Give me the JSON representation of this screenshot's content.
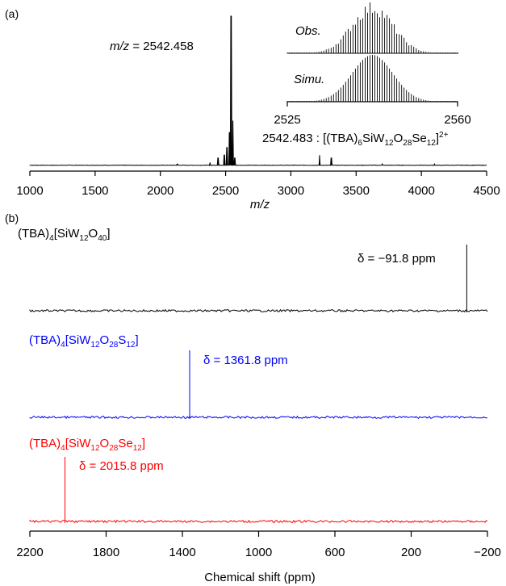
{
  "chart_data": [
    {
      "type": "line",
      "panel_label": "(a)",
      "xlabel": "m/z",
      "xlim": [
        1000,
        4500
      ],
      "x_ticks": [
        1000,
        1500,
        2000,
        2500,
        3000,
        3500,
        4000,
        4500
      ],
      "annotation": {
        "prefix": "m/z",
        "text": " = 2542.458"
      },
      "peaks": [
        {
          "x": 2130,
          "y": 0.01
        },
        {
          "x": 2380,
          "y": 0.02
        },
        {
          "x": 2442,
          "y": 0.05
        },
        {
          "x": 2490,
          "y": 0.07
        },
        {
          "x": 2510,
          "y": 0.12
        },
        {
          "x": 2530,
          "y": 0.22
        },
        {
          "x": 2542,
          "y": 1.0
        },
        {
          "x": 2555,
          "y": 0.3
        },
        {
          "x": 2570,
          "y": 0.05
        },
        {
          "x": 3220,
          "y": 0.07
        },
        {
          "x": 3310,
          "y": 0.05
        },
        {
          "x": 3700,
          "y": 0.01
        },
        {
          "x": 4100,
          "y": 0.01
        }
      ],
      "inset": {
        "xlim": [
          2525,
          2560
        ],
        "x_ticks": [
          2525,
          2560
        ],
        "center": 2542.5,
        "peak_spacing": 0.5,
        "width": 4.2,
        "series": [
          {
            "name": "Obs.",
            "noise": true
          },
          {
            "name": "Simu.",
            "noise": false
          }
        ],
        "formula": {
          "value": "2542.483 : [(TBA)",
          "s1": "6",
          "t1": "SiW",
          "s2": "12",
          "t2": "O",
          "s3": "28",
          "t3": "Se",
          "s4": "12",
          "t4": "]",
          "charge": "2+"
        }
      }
    },
    {
      "type": "line",
      "panel_label": "(b)",
      "xlabel": "Chemical shift (ppm)",
      "xlim": [
        2200,
        -200
      ],
      "x_ticks": [
        2200,
        1800,
        1400,
        1000,
        600,
        200,
        -200
      ],
      "x_tick_labels": [
        "2200",
        "1800",
        "1400",
        "1000",
        "600",
        "200",
        "−200"
      ],
      "series": [
        {
          "color": "#000000",
          "peak": -91.8,
          "compound": {
            "a": "(TBA)",
            "b": "4",
            "c": "[SiW",
            "d": "12",
            "e": "O",
            "f": "40",
            "g": "]"
          },
          "shift_label": "δ = −91.8 ppm"
        },
        {
          "color": "#0000ff",
          "peak": 1361.8,
          "compound": {
            "a": "(TBA)",
            "b": "4",
            "c": "[SiW",
            "d": "12",
            "e": "O",
            "f": "28",
            "g": "S",
            "h": "12",
            "i": "]"
          },
          "shift_label": "δ = 1361.8 ppm"
        },
        {
          "color": "#ff0000",
          "peak": 2015.8,
          "compound": {
            "a": "(TBA)",
            "b": "4",
            "c": "[SiW",
            "d": "12",
            "e": "O",
            "f": "28",
            "g": "Se",
            "h": "12",
            "i": "]"
          },
          "shift_label": "δ = 2015.8 ppm"
        }
      ]
    }
  ]
}
